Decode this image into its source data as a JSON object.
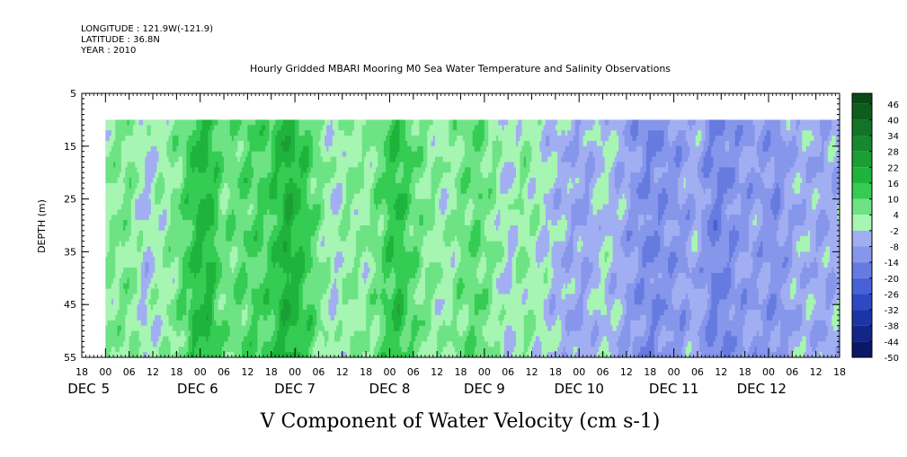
{
  "header": {
    "longitude": "LONGITUDE : 121.9W(-121.9)",
    "latitude": "LATITUDE : 36.8N",
    "year": "YEAR : 2010"
  },
  "chart_data": {
    "type": "heatmap",
    "title": "Hourly Gridded MBARI Mooring M0 Sea Water Temperature and Salinity Observations",
    "xlabel": "V Component of Water Velocity (cm s-1)",
    "ylabel": "DEPTH (m)",
    "y_axis": {
      "range": [
        5,
        55
      ],
      "inverted": true,
      "ticks": [
        5,
        15,
        25,
        35,
        45,
        55
      ],
      "minor_step": 1
    },
    "x_axis": {
      "range_hours": [
        -6,
        186
      ],
      "hour_ticks": [
        {
          "hour": -6,
          "label": "18"
        },
        {
          "hour": 0,
          "label": "00"
        },
        {
          "hour": 6,
          "label": "06"
        },
        {
          "hour": 12,
          "label": "12"
        },
        {
          "hour": 18,
          "label": "18"
        },
        {
          "hour": 24,
          "label": "00"
        },
        {
          "hour": 30,
          "label": "06"
        },
        {
          "hour": 36,
          "label": "12"
        },
        {
          "hour": 42,
          "label": "18"
        },
        {
          "hour": 48,
          "label": "00"
        },
        {
          "hour": 54,
          "label": "06"
        },
        {
          "hour": 60,
          "label": "12"
        },
        {
          "hour": 66,
          "label": "18"
        },
        {
          "hour": 72,
          "label": "00"
        },
        {
          "hour": 78,
          "label": "06"
        },
        {
          "hour": 84,
          "label": "12"
        },
        {
          "hour": 90,
          "label": "18"
        },
        {
          "hour": 96,
          "label": "00"
        },
        {
          "hour": 102,
          "label": "06"
        },
        {
          "hour": 108,
          "label": "12"
        },
        {
          "hour": 114,
          "label": "18"
        },
        {
          "hour": 120,
          "label": "00"
        },
        {
          "hour": 126,
          "label": "06"
        },
        {
          "hour": 132,
          "label": "12"
        },
        {
          "hour": 138,
          "label": "18"
        },
        {
          "hour": 144,
          "label": "00"
        },
        {
          "hour": 150,
          "label": "06"
        },
        {
          "hour": 156,
          "label": "12"
        },
        {
          "hour": 162,
          "label": "18"
        },
        {
          "hour": 168,
          "label": "00"
        },
        {
          "hour": 174,
          "label": "06"
        },
        {
          "hour": 180,
          "label": "12"
        },
        {
          "hour": 186,
          "label": "18"
        }
      ],
      "day_labels": [
        {
          "hour": -6,
          "label": "DEC",
          "anchor": "middle"
        },
        {
          "hour": 0,
          "label": "5",
          "anchor": "middle"
        },
        {
          "hour": 24,
          "label": "DEC  6",
          "anchor": "end"
        },
        {
          "hour": 48,
          "label": "DEC  7",
          "anchor": "middle"
        },
        {
          "hour": 72,
          "label": "DEC  8",
          "anchor": "middle"
        },
        {
          "hour": 96,
          "label": "DEC  9",
          "anchor": "middle"
        },
        {
          "hour": 120,
          "label": "DEC 10",
          "anchor": "middle"
        },
        {
          "hour": 144,
          "label": "DEC 11",
          "anchor": "middle"
        },
        {
          "hour": 168,
          "label": "DEC 12",
          "anchor": "end"
        }
      ]
    },
    "data_extent": {
      "hour_start": 0,
      "hour_end": 186,
      "depth_start": 10,
      "depth_end": 55
    },
    "profile": [
      {
        "hour": 0,
        "value": 3
      },
      {
        "hour": 6,
        "value": 6
      },
      {
        "hour": 10,
        "value": -3
      },
      {
        "hour": 14,
        "value": 2
      },
      {
        "hour": 18,
        "value": 5
      },
      {
        "hour": 22,
        "value": 14
      },
      {
        "hour": 26,
        "value": 18
      },
      {
        "hour": 30,
        "value": 6
      },
      {
        "hour": 34,
        "value": 9
      },
      {
        "hour": 38,
        "value": 10
      },
      {
        "hour": 42,
        "value": 12
      },
      {
        "hour": 46,
        "value": 20
      },
      {
        "hour": 50,
        "value": 14
      },
      {
        "hour": 54,
        "value": 6
      },
      {
        "hour": 58,
        "value": -1
      },
      {
        "hour": 62,
        "value": 4
      },
      {
        "hour": 66,
        "value": 2
      },
      {
        "hour": 70,
        "value": 9
      },
      {
        "hour": 74,
        "value": 16
      },
      {
        "hour": 78,
        "value": 8
      },
      {
        "hour": 82,
        "value": 4
      },
      {
        "hour": 86,
        "value": 1
      },
      {
        "hour": 90,
        "value": 6
      },
      {
        "hour": 94,
        "value": 9
      },
      {
        "hour": 98,
        "value": 4
      },
      {
        "hour": 102,
        "value": -2
      },
      {
        "hour": 106,
        "value": 4
      },
      {
        "hour": 110,
        "value": 0
      },
      {
        "hour": 114,
        "value": -4
      },
      {
        "hour": 118,
        "value": -6
      },
      {
        "hour": 122,
        "value": -7
      },
      {
        "hour": 126,
        "value": -1
      },
      {
        "hour": 130,
        "value": -5
      },
      {
        "hour": 134,
        "value": -10
      },
      {
        "hour": 138,
        "value": -13
      },
      {
        "hour": 142,
        "value": -11
      },
      {
        "hour": 146,
        "value": -9
      },
      {
        "hour": 150,
        "value": -6
      },
      {
        "hour": 154,
        "value": -15
      },
      {
        "hour": 158,
        "value": -12
      },
      {
        "hour": 162,
        "value": -9
      },
      {
        "hour": 166,
        "value": -8
      },
      {
        "hour": 170,
        "value": -12
      },
      {
        "hour": 174,
        "value": -6
      },
      {
        "hour": 178,
        "value": -5
      },
      {
        "hour": 182,
        "value": -7
      },
      {
        "hour": 186,
        "value": -5
      }
    ],
    "colorbar": {
      "min": -50,
      "max": 50,
      "step": 6,
      "labels": [
        46,
        40,
        34,
        28,
        22,
        16,
        10,
        4,
        -2,
        -8,
        -14,
        -20,
        -26,
        -32,
        -38,
        -44,
        -50
      ],
      "bins": [
        {
          "lo": 46,
          "hi": 50,
          "color": "#0b4a16"
        },
        {
          "lo": 40,
          "hi": 46,
          "color": "#0e5d1c"
        },
        {
          "lo": 34,
          "hi": 40,
          "color": "#137326"
        },
        {
          "lo": 28,
          "hi": 34,
          "color": "#16882d"
        },
        {
          "lo": 22,
          "hi": 28,
          "color": "#1b9e34"
        },
        {
          "lo": 16,
          "hi": 22,
          "color": "#1fb33c"
        },
        {
          "lo": 10,
          "hi": 16,
          "color": "#34cc52"
        },
        {
          "lo": 4,
          "hi": 10,
          "color": "#6de384"
        },
        {
          "lo": -2,
          "hi": 4,
          "color": "#a6f5b2"
        },
        {
          "lo": -8,
          "hi": -2,
          "color": "#a2aef2"
        },
        {
          "lo": -14,
          "hi": -8,
          "color": "#8696ea"
        },
        {
          "lo": -20,
          "hi": -14,
          "color": "#667be0"
        },
        {
          "lo": -26,
          "hi": -20,
          "color": "#4861d6"
        },
        {
          "lo": -32,
          "hi": -26,
          "color": "#2e49c4"
        },
        {
          "lo": -38,
          "hi": -32,
          "color": "#1d34a6"
        },
        {
          "lo": -44,
          "hi": -38,
          "color": "#132586"
        },
        {
          "lo": -50,
          "hi": -44,
          "color": "#0a1766"
        }
      ]
    }
  }
}
